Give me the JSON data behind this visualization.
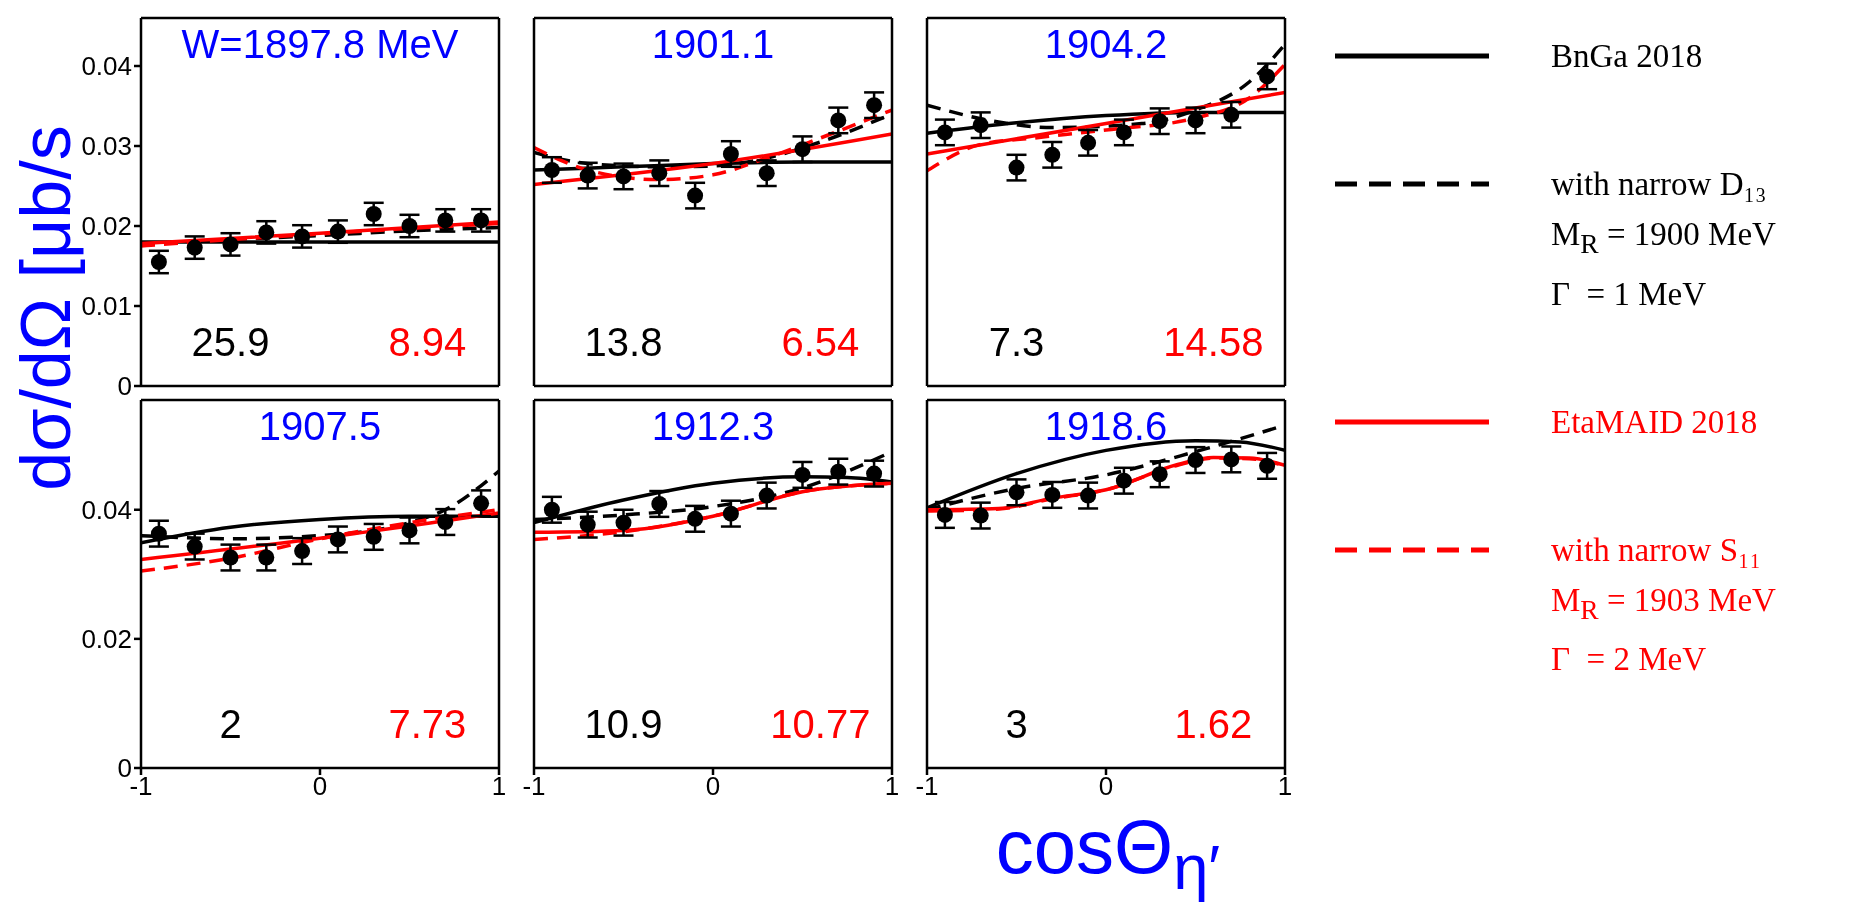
{
  "chart_data": [
    {
      "type": "line",
      "title": "W=1897.8 MeV",
      "ylabel": "dσ/dΩ [μb/s",
      "legend": "right",
      "xlim": [
        -1,
        1
      ],
      "xticks": [
        -1,
        0,
        1
      ],
      "ylim": [
        0,
        0.046
      ],
      "yticks": [
        0,
        0.01,
        0.02,
        0.03,
        0.04
      ],
      "tick_labels": "y",
      "annotations": [
        "25.9",
        "8.94"
      ],
      "series": [
        {
          "name": "BnGa 2018",
          "color": "#000000",
          "line_style": "solid",
          "x": [
            -1,
            0,
            1
          ],
          "values": [
            0.018,
            0.018,
            0.018
          ]
        },
        {
          "name": "with narrow D₁₃\nM$_{R}$ = 1900 MeV\nΓ  = 1 MeV",
          "color": "#000000",
          "line_style": "dashed",
          "x": [
            -1,
            -0.5,
            0,
            0.5,
            1
          ],
          "values": [
            0.0177,
            0.0183,
            0.0188,
            0.0194,
            0.0198
          ]
        },
        {
          "name": "EtaMAID 2018",
          "color": "#ff0000",
          "line_style": "solid",
          "x": [
            -1,
            0,
            1
          ],
          "values": [
            0.0178,
            0.0191,
            0.0205
          ]
        },
        {
          "name": "with narrow S₁₁\nM$_{R}$ = 1903 MeV\nΓ  = 2 MeV",
          "color": "#ff0000",
          "line_style": "dashed",
          "x": [
            -1,
            -0.5,
            0,
            0.5,
            1
          ],
          "values": [
            0.0175,
            0.0183,
            0.019,
            0.0197,
            0.0203
          ]
        },
        {
          "type": "scatter",
          "color": "#000000",
          "marker": "circle",
          "x": [
            -0.9,
            -0.7,
            -0.5,
            -0.3,
            -0.1,
            0.1,
            0.3,
            0.5,
            0.7,
            0.9
          ],
          "values": [
            0.0155,
            0.0173,
            0.0177,
            0.0192,
            0.0187,
            0.0193,
            0.0215,
            0.02,
            0.0207,
            0.0207
          ],
          "errors": [
            0.0014,
            0.0014,
            0.0014,
            0.0014,
            0.0014,
            0.0014,
            0.0014,
            0.0014,
            0.0014,
            0.0014
          ]
        }
      ]
    },
    {
      "type": "line",
      "title": "1901.1",
      "xlim": [
        -1,
        1
      ],
      "xticks": [
        -1,
        0,
        1
      ],
      "ylim": [
        0,
        0.046
      ],
      "yticks": [
        0,
        0.01,
        0.02,
        0.03,
        0.04
      ],
      "tick_labels": false,
      "annotations": [
        "13.8",
        "6.54"
      ],
      "series": [
        {
          "color": "#000000",
          "line_style": "solid",
          "x": [
            -1,
            -0.5,
            0,
            0.5,
            1
          ],
          "values": [
            0.027,
            0.0274,
            0.0278,
            0.028,
            0.028
          ]
        },
        {
          "color": "#000000",
          "line_style": "dashed",
          "x": [
            -1,
            -0.7,
            -0.3,
            0,
            0.3,
            0.6,
            1
          ],
          "values": [
            0.0292,
            0.0278,
            0.0274,
            0.0275,
            0.0285,
            0.0305,
            0.034
          ]
        },
        {
          "color": "#ff0000",
          "line_style": "solid",
          "x": [
            -1,
            0,
            1
          ],
          "values": [
            0.0252,
            0.0278,
            0.0315
          ]
        },
        {
          "color": "#ff0000",
          "line_style": "dashed",
          "x": [
            -1,
            -0.7,
            -0.3,
            0,
            0.3,
            0.6,
            1
          ],
          "values": [
            0.0298,
            0.027,
            0.0258,
            0.0264,
            0.0285,
            0.031,
            0.0345
          ]
        },
        {
          "type": "scatter",
          "color": "#000000",
          "marker": "circle",
          "x": [
            -0.9,
            -0.7,
            -0.5,
            -0.3,
            -0.1,
            0.1,
            0.3,
            0.5,
            0.7,
            0.9
          ],
          "values": [
            0.027,
            0.0263,
            0.0262,
            0.0266,
            0.0238,
            0.029,
            0.0266,
            0.0296,
            0.0332,
            0.0351
          ],
          "errors": [
            0.0016,
            0.0016,
            0.0016,
            0.0016,
            0.0016,
            0.0016,
            0.0016,
            0.0016,
            0.0016,
            0.0016
          ]
        }
      ]
    },
    {
      "type": "line",
      "title": "1904.2",
      "xlim": [
        -1,
        1
      ],
      "xticks": [
        -1,
        0,
        1
      ],
      "ylim": [
        0,
        0.046
      ],
      "yticks": [
        0,
        0.01,
        0.02,
        0.03,
        0.04
      ],
      "tick_labels": false,
      "annotations": [
        "7.3",
        "14.58"
      ],
      "series": [
        {
          "color": "#000000",
          "line_style": "solid",
          "x": [
            -1,
            -0.5,
            0,
            0.5,
            1
          ],
          "values": [
            0.0316,
            0.0329,
            0.0338,
            0.0342,
            0.0342
          ]
        },
        {
          "color": "#000000",
          "line_style": "dashed",
          "x": [
            -1,
            -0.6,
            -0.3,
            0.2,
            0.5,
            0.8,
            1
          ],
          "values": [
            0.0351,
            0.033,
            0.0323,
            0.0328,
            0.0345,
            0.038,
            0.0427
          ]
        },
        {
          "color": "#ff0000",
          "line_style": "solid",
          "x": [
            -1,
            0,
            1
          ],
          "values": [
            0.029,
            0.0328,
            0.0367
          ]
        },
        {
          "color": "#ff0000",
          "line_style": "dashed",
          "x": [
            -1,
            -0.7,
            -0.4,
            0,
            0.5,
            0.8,
            1
          ],
          "values": [
            0.0269,
            0.0302,
            0.031,
            0.032,
            0.0335,
            0.036,
            0.0402
          ]
        },
        {
          "type": "scatter",
          "color": "#000000",
          "marker": "circle",
          "x": [
            -0.9,
            -0.7,
            -0.5,
            -0.3,
            -0.1,
            0.1,
            0.3,
            0.5,
            0.7,
            0.9
          ],
          "values": [
            0.0317,
            0.0326,
            0.0273,
            0.0289,
            0.0304,
            0.0317,
            0.0331,
            0.0332,
            0.0339,
            0.0387
          ],
          "errors": [
            0.0016,
            0.0016,
            0.0016,
            0.0016,
            0.0016,
            0.0016,
            0.0016,
            0.0016,
            0.0016,
            0.0016
          ]
        }
      ]
    },
    {
      "type": "line",
      "title": "1907.5",
      "xlim": [
        -1,
        1
      ],
      "xticks": [
        -1,
        0,
        1
      ],
      "ylim": [
        0,
        0.057
      ],
      "yticks": [
        0,
        0.02,
        0.04
      ],
      "annotations": [
        "2",
        "7.73"
      ],
      "series": [
        {
          "color": "#000000",
          "line_style": "solid",
          "x": [
            -1,
            -0.5,
            0,
            0.5,
            1
          ],
          "values": [
            0.0349,
            0.0373,
            0.0385,
            0.039,
            0.039
          ]
        },
        {
          "color": "#000000",
          "line_style": "dashed",
          "x": [
            -1,
            -0.5,
            0,
            0.5,
            0.7,
            1
          ],
          "values": [
            0.036,
            0.0355,
            0.036,
            0.038,
            0.04,
            0.046
          ]
        },
        {
          "color": "#ff0000",
          "line_style": "solid",
          "x": [
            -1,
            0,
            1
          ],
          "values": [
            0.0323,
            0.0356,
            0.0395
          ]
        },
        {
          "color": "#ff0000",
          "line_style": "dashed",
          "x": [
            -1,
            -0.5,
            0,
            0.5,
            1
          ],
          "values": [
            0.0305,
            0.0325,
            0.0355,
            0.038,
            0.04
          ]
        },
        {
          "type": "scatter",
          "color": "#000000",
          "marker": "circle",
          "x": [
            -0.9,
            -0.7,
            -0.5,
            -0.3,
            -0.1,
            0.1,
            0.3,
            0.5,
            0.7,
            0.9
          ],
          "values": [
            0.0363,
            0.0343,
            0.0326,
            0.0326,
            0.0336,
            0.0354,
            0.0358,
            0.0368,
            0.0381,
            0.041
          ],
          "errors": [
            0.002,
            0.002,
            0.002,
            0.002,
            0.002,
            0.002,
            0.002,
            0.002,
            0.002,
            0.002
          ]
        }
      ]
    },
    {
      "type": "line",
      "title": "1912.3",
      "xlabel": "cosΘ$_{η′}$",
      "xlim": [
        -1,
        1
      ],
      "xticks": [
        -1,
        0,
        1
      ],
      "ylim": [
        0,
        0.057
      ],
      "yticks": [
        0,
        0.02,
        0.04
      ],
      "tick_labels": "x",
      "annotations": [
        "10.9",
        "10.77"
      ],
      "series": [
        {
          "color": "#000000",
          "line_style": "solid",
          "x": [
            -1,
            -0.5,
            0,
            0.5,
            0.75,
            1
          ],
          "values": [
            0.038,
            0.0415,
            0.0441,
            0.0451,
            0.045,
            0.0443
          ]
        },
        {
          "color": "#000000",
          "line_style": "dashed",
          "x": [
            -1,
            -0.5,
            0,
            0.5,
            1
          ],
          "values": [
            0.0385,
            0.0392,
            0.0405,
            0.0434,
            0.049
          ]
        },
        {
          "color": "#ff0000",
          "line_style": "solid",
          "x": [
            -1,
            -0.5,
            0,
            0.5,
            1
          ],
          "values": [
            0.0365,
            0.0368,
            0.039,
            0.0428,
            0.0441
          ]
        },
        {
          "color": "#ff0000",
          "line_style": "dashed",
          "x": [
            -1,
            -0.5,
            0,
            0.5,
            1
          ],
          "values": [
            0.0354,
            0.0366,
            0.039,
            0.0428,
            0.0441
          ]
        },
        {
          "type": "scatter",
          "color": "#000000",
          "marker": "circle",
          "x": [
            -0.9,
            -0.7,
            -0.5,
            -0.3,
            -0.1,
            0.1,
            0.3,
            0.5,
            0.7,
            0.9
          ],
          "values": [
            0.04,
            0.0377,
            0.038,
            0.0409,
            0.0386,
            0.0394,
            0.0422,
            0.0454,
            0.0459,
            0.0456
          ],
          "errors": [
            0.002,
            0.002,
            0.002,
            0.002,
            0.002,
            0.002,
            0.002,
            0.002,
            0.002,
            0.002
          ]
        }
      ]
    },
    {
      "type": "line",
      "title": "1918.6",
      "xlim": [
        -1,
        1
      ],
      "xticks": [
        -1,
        0,
        1
      ],
      "ylim": [
        0,
        0.057
      ],
      "yticks": [
        0,
        0.02,
        0.04
      ],
      "tick_labels": "x",
      "annotations": [
        "3",
        "1.62"
      ],
      "series": [
        {
          "color": "#000000",
          "line_style": "solid",
          "x": [
            -1,
            -0.5,
            0,
            0.5,
            0.75,
            1
          ],
          "values": [
            0.0403,
            0.0456,
            0.0492,
            0.0507,
            0.0505,
            0.0492
          ]
        },
        {
          "color": "#000000",
          "line_style": "dashed",
          "x": [
            -1,
            -0.5,
            0,
            0.5,
            1
          ],
          "values": [
            0.04,
            0.0433,
            0.0454,
            0.049,
            0.0531
          ]
        },
        {
          "color": "#ff0000",
          "line_style": "solid",
          "x": [
            -1,
            -0.6,
            -0.3,
            0,
            0.4,
            0.6,
            0.8,
            1
          ],
          "values": [
            0.04,
            0.0402,
            0.0418,
            0.0431,
            0.047,
            0.0481,
            0.048,
            0.0469
          ]
        },
        {
          "color": "#ff0000",
          "line_style": "dashed",
          "x": [
            -1,
            -0.6,
            -0.3,
            0,
            0.4,
            0.6,
            0.8,
            1
          ],
          "values": [
            0.0398,
            0.0401,
            0.0417,
            0.0431,
            0.0469,
            0.048,
            0.0479,
            0.0468
          ]
        },
        {
          "type": "scatter",
          "color": "#000000",
          "marker": "circle",
          "x": [
            -0.9,
            -0.7,
            -0.5,
            -0.3,
            -0.1,
            0.1,
            0.3,
            0.5,
            0.7,
            0.9
          ],
          "values": [
            0.0392,
            0.0391,
            0.0427,
            0.0423,
            0.0422,
            0.0445,
            0.0455,
            0.0477,
            0.0478,
            0.0468
          ],
          "errors": [
            0.002,
            0.002,
            0.002,
            0.002,
            0.002,
            0.002,
            0.002,
            0.002,
            0.002,
            0.002
          ]
        }
      ]
    }
  ]
}
